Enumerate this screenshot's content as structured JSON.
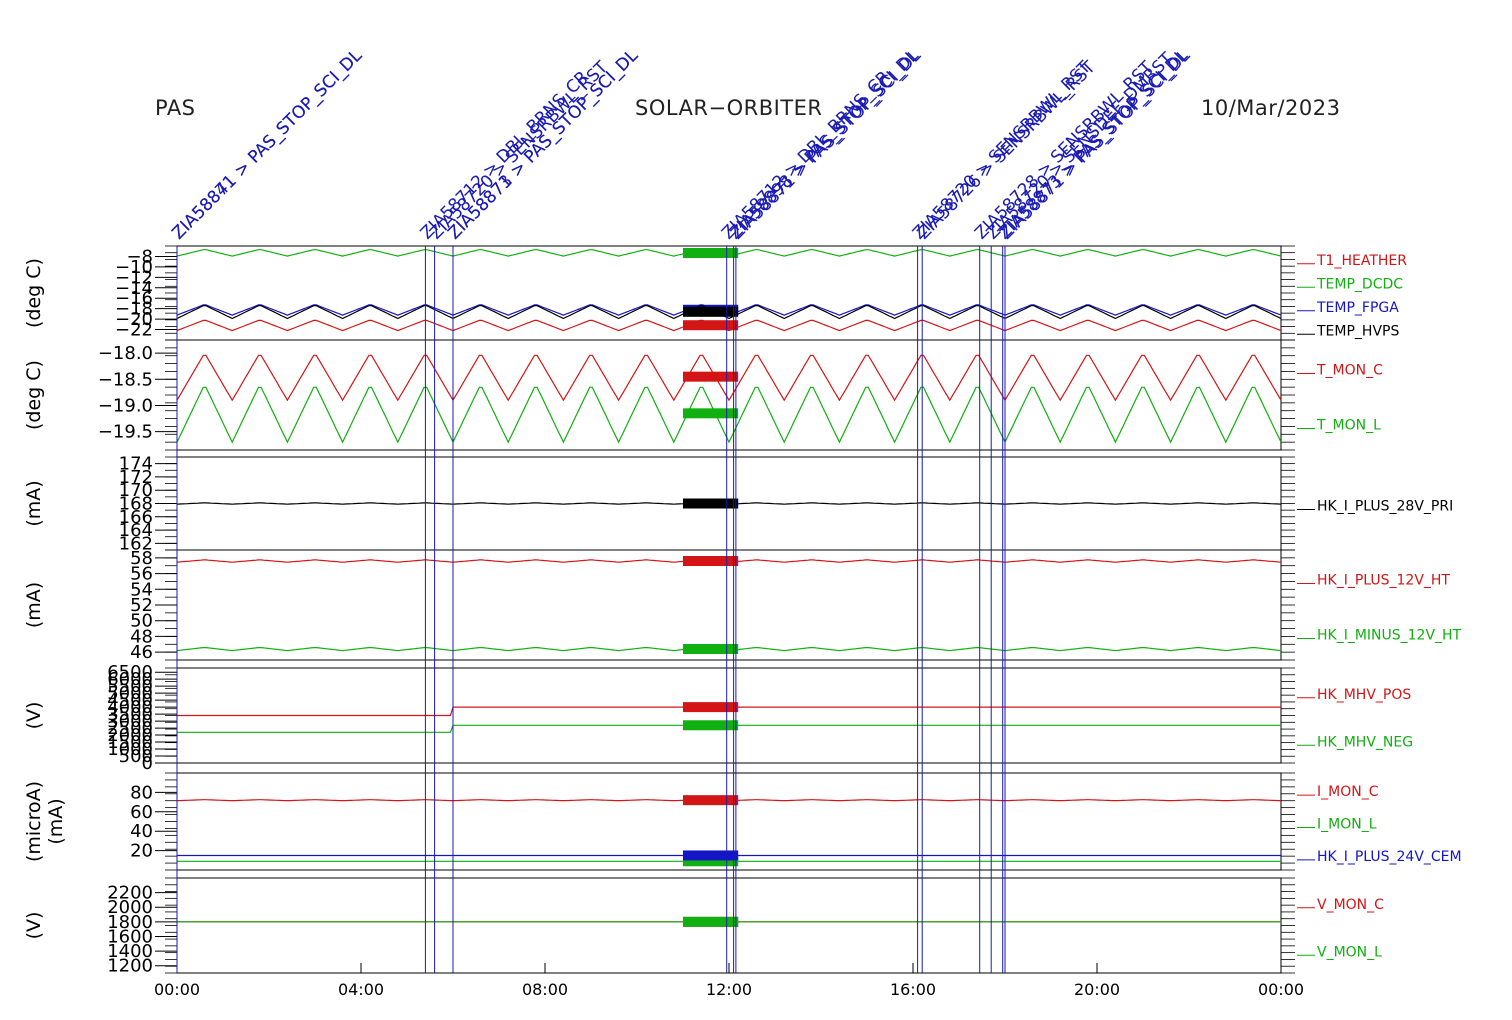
{
  "header": {
    "left": "PAS",
    "center": "SOLAR−ORBITER",
    "right": "10/Mar/2023"
  },
  "colors": {
    "red": "#d41515",
    "green": "#10b010",
    "blue": "#1515c8",
    "black": "#000000",
    "cmd_line": "#1a1ab4"
  },
  "x_axis": {
    "range_hours": [
      0,
      24
    ],
    "tick_labels": [
      "00:00",
      "04:00",
      "08:00",
      "12:00",
      "16:00",
      "20:00",
      "00:00"
    ]
  },
  "command_markers": [
    {
      "time_h": 0.0,
      "label": "ZIA58871 > PAS_STOP_SCI_DL"
    },
    {
      "time_h": 0.0,
      "label": "ZIA58841 > PAS_STOP_SCI_DL"
    },
    {
      "time_h": 5.4,
      "label": "ZIA58712 > DBL_BRNS_CR"
    },
    {
      "time_h": 5.6,
      "label": "ZIA58720 > SENSRBWL_RST"
    },
    {
      "time_h": 6.0,
      "label": "ZIA58871 > PAS_STOP_SCI_DL"
    },
    {
      "time_h": 6.0,
      "label": "ZIA58873 > PAS_STOP_SCI_DL"
    },
    {
      "time_h": 11.95,
      "label": "ZIA58712 > DBL_BRNS_CR"
    },
    {
      "time_h": 12.1,
      "label": "ZIA58898 > PAS_STOP_SCI_DL"
    },
    {
      "time_h": 12.15,
      "label": "ZIA58871 > PAS_STOP_SCI_DL"
    },
    {
      "time_h": 16.1,
      "label": "ZIA58720 > SENSRBWL_RST"
    },
    {
      "time_h": 16.2,
      "label": "ZIA58726 > SENSRBWL_RST"
    },
    {
      "time_h": 17.45,
      "label": "ZIA58728 > SENSRBWL_RST"
    },
    {
      "time_h": 17.7,
      "label": "ZIA58720 > SENSDEF_DMRST"
    },
    {
      "time_h": 17.95,
      "label": "ZIA58873 > PAS_STOP_SCI_DL"
    },
    {
      "time_h": 18.0,
      "label": "ZIA58871 > PAS_STOP_SCI_DL"
    }
  ],
  "chart_data": [
    {
      "type": "line",
      "ylabel": "(deg C)",
      "ylim": [
        -22,
        -8
      ],
      "ytick_labels": [
        "−22",
        "−20",
        "−18",
        "−16",
        "−14",
        "−12",
        "−10",
        "−8"
      ],
      "series": [
        {
          "name": "T1_HEATHER",
          "color": "red",
          "base": -19.8,
          "amp": 0.8,
          "period_h": 1.2
        },
        {
          "name": "TEMP_DCDC",
          "color": "green",
          "base": -9.0,
          "amp": 0.5,
          "period_h": 1.2
        },
        {
          "name": "TEMP_FPGA",
          "color": "blue",
          "base": -17.5,
          "amp": 0.8,
          "period_h": 1.2
        },
        {
          "name": "TEMP_HVPS",
          "color": "black",
          "base": -17.8,
          "amp": 1.0,
          "period_h": 1.2
        }
      ]
    },
    {
      "type": "line",
      "ylabel": "(deg C)",
      "ylim": [
        -19.85,
        -17.75
      ],
      "ytick_labels": [
        "−19.5",
        "−19.0",
        "−18.5",
        "−18.0"
      ],
      "ytick_values": [
        -19.5,
        -19.0,
        -18.5,
        -18.0
      ],
      "series": [
        {
          "name": "T_MON_C",
          "color": "red",
          "base": -18.45,
          "amp": 0.45,
          "period_h": 1.2
        },
        {
          "name": "T_MON_L",
          "color": "green",
          "base": -19.15,
          "amp": 0.55,
          "period_h": 1.2
        }
      ]
    },
    {
      "type": "line",
      "ylabel": "(mA)",
      "ylim": [
        161,
        175
      ],
      "ytick_labels": [
        "162",
        "164",
        "166",
        "168",
        "170",
        "172",
        "174"
      ],
      "ytick_values": [
        162,
        164,
        166,
        168,
        170,
        172,
        174
      ],
      "series": [
        {
          "name": "HK_I_PLUS_28V_PRI",
          "color": "black",
          "base": 168.0,
          "amp": 0.1,
          "period_h": 1.2
        }
      ]
    },
    {
      "type": "line",
      "ylabel": "(mA)",
      "ylim": [
        45,
        59
      ],
      "ytick_labels": [
        "46",
        "48",
        "50",
        "52",
        "54",
        "56",
        "58"
      ],
      "ytick_values": [
        46,
        48,
        50,
        52,
        54,
        56,
        58
      ],
      "series": [
        {
          "name": "HK_I_PLUS_12V_HT",
          "color": "red",
          "base": 57.6,
          "amp": 0.15,
          "period_h": 1.2
        },
        {
          "name": "HK_I_MINUS_12V_HT",
          "color": "green",
          "base": 46.4,
          "amp": 0.2,
          "period_h": 1.2
        }
      ]
    },
    {
      "type": "line",
      "ylabel": "(V)",
      "ylim": [
        0,
        6800
      ],
      "ytick_labels": [
        "0",
        "500",
        "1000",
        "1500",
        "2000",
        "2500",
        "3000",
        "3500",
        "4000",
        "4500",
        "5000",
        "5500",
        "6000",
        "6500"
      ],
      "ytick_values": [
        0,
        500,
        1000,
        1500,
        2000,
        2500,
        3000,
        3500,
        4000,
        4500,
        5000,
        5500,
        6000,
        6500
      ],
      "series": [
        {
          "name": "HK_MHV_POS",
          "color": "red",
          "base": 4000,
          "amp": 0,
          "period_h": 1.2
        },
        {
          "name": "HK_MHV_NEG",
          "color": "green",
          "base": 2700,
          "amp": 0,
          "period_h": 1.2
        }
      ]
    },
    {
      "type": "line",
      "ylabel": "(microA)",
      "ylabel2": "(mA)",
      "ylim": [
        0,
        100
      ],
      "ytick_labels": [
        "20",
        "40",
        "60",
        "80"
      ],
      "ytick_values": [
        20,
        40,
        60,
        80
      ],
      "series": [
        {
          "name": "I_MON_C",
          "color": "red",
          "base": 72,
          "amp": 0.5,
          "period_h": 1.2
        },
        {
          "name": "I_MON_L",
          "color": "green",
          "base": 9,
          "amp": 0,
          "period_h": 1.2
        },
        {
          "name": "HK_I_PLUS_24V_CEM",
          "color": "blue",
          "base": 15,
          "amp": 0,
          "period_h": 1.2
        }
      ]
    },
    {
      "type": "line",
      "ylabel": "(V)",
      "ylim": [
        1100,
        2400
      ],
      "ytick_labels": [
        "1200",
        "1400",
        "1600",
        "1800",
        "2000",
        "2200"
      ],
      "ytick_values": [
        1200,
        1400,
        1600,
        1800,
        2000,
        2200
      ],
      "series": [
        {
          "name": "V_MON_C",
          "color": "red",
          "base": 1800,
          "amp": 0,
          "period_h": 1.2
        },
        {
          "name": "V_MON_L",
          "color": "green",
          "base": 1800,
          "amp": 0,
          "period_h": 1.2
        }
      ]
    }
  ]
}
